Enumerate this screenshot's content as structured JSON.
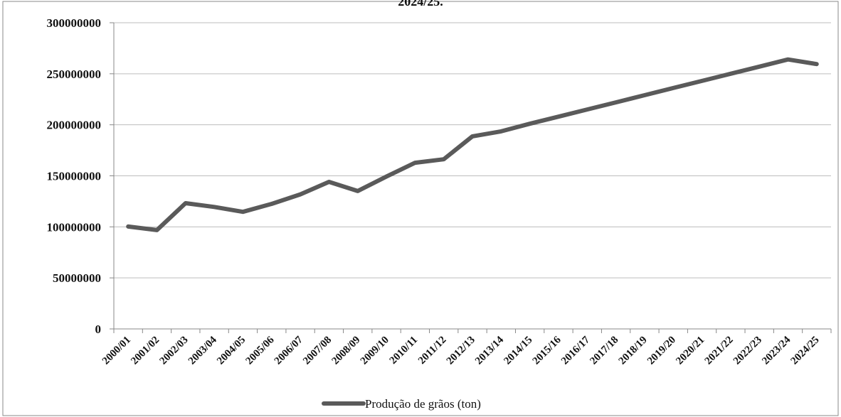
{
  "chart_data": {
    "type": "line",
    "title": "2024/25.",
    "xlabel": "",
    "ylabel": "",
    "categories": [
      "2000/01",
      "2001/02",
      "2002/03",
      "2003/04",
      "2004/05",
      "2005/06",
      "2006/07",
      "2007/08",
      "2008/09",
      "2009/10",
      "2010/11",
      "2011/12",
      "2012/13",
      "2013/14",
      "2014/15",
      "2015/16",
      "2016/17",
      "2017/18",
      "2018/19",
      "2019/20",
      "2020/21",
      "2021/22",
      "2022/23",
      "2023/24",
      "2024/25"
    ],
    "series": [
      {
        "name": "Produção de grãos (ton)",
        "color": "#5a5a5a",
        "values": [
          100300000,
          96800000,
          123200000,
          119500000,
          114700000,
          122500000,
          131800000,
          144100000,
          135100000,
          149200000,
          162800000,
          166200000,
          188700000,
          193600000,
          201000000,
          208000000,
          215000000,
          222000000,
          229000000,
          236000000,
          243000000,
          250000000,
          257000000,
          264000000,
          259500000
        ]
      }
    ],
    "yticks": [
      "0",
      "50000000",
      "100000000",
      "150000000",
      "200000000",
      "250000000",
      "300000000"
    ],
    "ylim": [
      0,
      300000000
    ],
    "grid": true,
    "legend_position": "bottom"
  }
}
